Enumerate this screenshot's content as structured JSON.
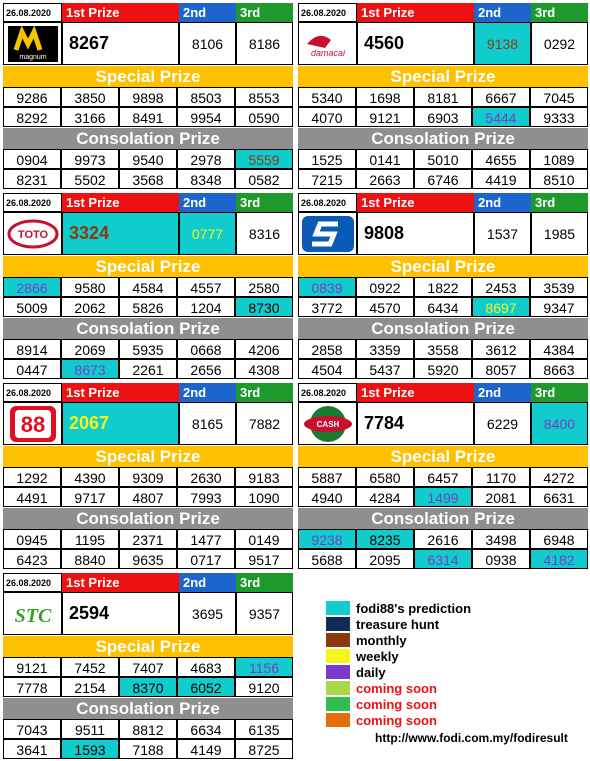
{
  "labels": {
    "first": "1st Prize",
    "second": "2nd",
    "third": "3rd",
    "special": "Special Prize",
    "consolation": "Consolation Prize"
  },
  "cards": [
    {
      "brand": "magnum",
      "date": "26.08.2020",
      "first": "8267",
      "second": "8106",
      "third": "8186",
      "special": [
        "9286",
        "3850",
        "9898",
        "8503",
        "8553",
        "8292",
        "3166",
        "8491",
        "9954",
        "0590"
      ],
      "consolation": [
        "0904",
        "9973",
        "9540",
        "2978",
        "5559",
        "8231",
        "5502",
        "3568",
        "8348",
        "0582"
      ]
    },
    {
      "brand": "damacai",
      "date": "26.08.2020",
      "first": "4560",
      "second": "9138",
      "third": "0292",
      "special": [
        "5340",
        "1698",
        "8181",
        "6667",
        "7045",
        "4070",
        "9121",
        "6903",
        "5444",
        "9333"
      ],
      "consolation": [
        "1525",
        "0141",
        "5010",
        "4655",
        "1089",
        "7215",
        "2663",
        "6746",
        "4419",
        "8510"
      ]
    },
    {
      "brand": "toto",
      "date": "26.08.2020",
      "first": "3324",
      "second": "0777",
      "third": "8316",
      "special": [
        "2866",
        "9580",
        "4584",
        "4557",
        "2580",
        "5009",
        "2062",
        "5826",
        "1204",
        "8730"
      ],
      "consolation": [
        "8914",
        "2069",
        "5935",
        "0668",
        "4206",
        "0447",
        "8673",
        "2261",
        "2656",
        "4308"
      ]
    },
    {
      "brand": "singapore",
      "date": "26.08.2020",
      "first": "9808",
      "second": "1537",
      "third": "1985",
      "special": [
        "0839",
        "0922",
        "1822",
        "2453",
        "3539",
        "3772",
        "4570",
        "6434",
        "8697",
        "9347"
      ],
      "consolation": [
        "2858",
        "3359",
        "3558",
        "3612",
        "4384",
        "4504",
        "5437",
        "5920",
        "8057",
        "8663"
      ]
    },
    {
      "brand": "88",
      "date": "26.08.2020",
      "first": "2067",
      "second": "8165",
      "third": "7882",
      "special": [
        "1292",
        "4390",
        "9309",
        "2630",
        "9183",
        "4491",
        "9717",
        "4807",
        "7993",
        "1090"
      ],
      "consolation": [
        "0945",
        "1195",
        "2371",
        "1477",
        "0149",
        "6423",
        "8840",
        "9635",
        "0717",
        "9517"
      ]
    },
    {
      "brand": "cashsweep",
      "date": "26.08.2020",
      "first": "7784",
      "second": "6229",
      "third": "8400",
      "special": [
        "5887",
        "6580",
        "6457",
        "1170",
        "4272",
        "4940",
        "4284",
        "1499",
        "2081",
        "6631"
      ],
      "consolation": [
        "9238",
        "8235",
        "2616",
        "3498",
        "6948",
        "5688",
        "2095",
        "6314",
        "0938",
        "4182"
      ]
    },
    {
      "brand": "stc",
      "date": "26.08.2020",
      "first": "2594",
      "second": "3695",
      "third": "9357",
      "special": [
        "9121",
        "7452",
        "7407",
        "4683",
        "1156",
        "7778",
        "2154",
        "8370",
        "6052",
        "9120"
      ],
      "consolation": [
        "7043",
        "9511",
        "8812",
        "6634",
        "6135",
        "3641",
        "1593",
        "7188",
        "4149",
        "8725"
      ]
    }
  ],
  "legend": [
    {
      "color": "#11cccc",
      "label": "fodi88's prediction",
      "red": false
    },
    {
      "color": "#0f2a55",
      "label": "treasure hunt",
      "red": false
    },
    {
      "color": "#8b3a0e",
      "label": "monthly",
      "red": false
    },
    {
      "color": "#f5f51a",
      "label": "weekly",
      "red": false
    },
    {
      "color": "#7a3cc8",
      "label": "daily",
      "red": false
    },
    {
      "color": "#a8d84a",
      "label": "coming soon",
      "red": true
    },
    {
      "color": "#2fbf4f",
      "label": "coming soon",
      "red": true
    },
    {
      "color": "#e46c0a",
      "label": "coming soon",
      "red": true
    }
  ],
  "footer_url": "http://www.fodi.com.my/fodiresult"
}
